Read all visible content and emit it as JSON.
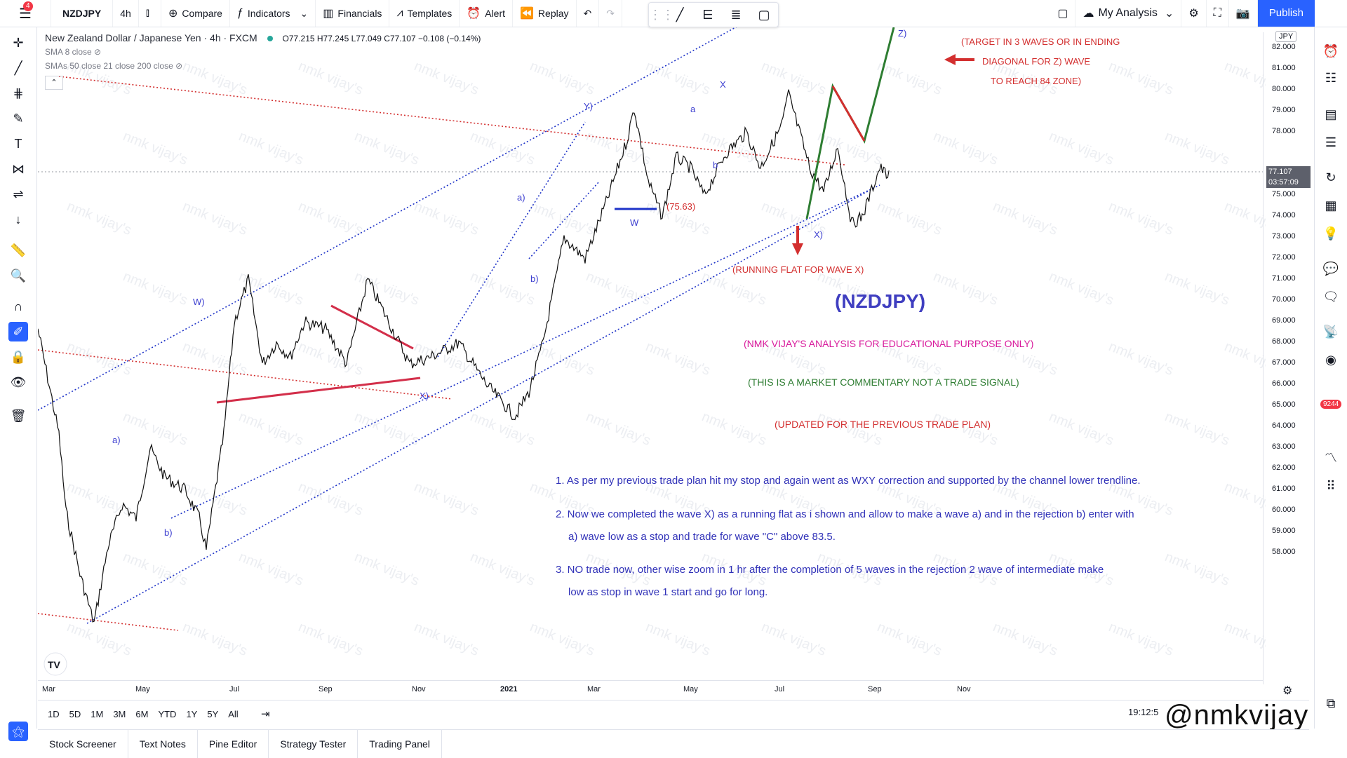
{
  "topbar": {
    "badge": "4",
    "symbol": "NZDJPY",
    "interval": "4h",
    "compare": "Compare",
    "indicators": "Indicators",
    "financials": "Financials",
    "templates": "Templates",
    "alert": "Alert",
    "replay": "Replay",
    "my_analysis": "My Analysis",
    "publish": "Publish"
  },
  "legend": {
    "pair": "New Zealand Dollar / Japanese Yen · 4h · FXCM",
    "ohlc": "O77.215 H77.245 L77.049 C77.107 −0.108 (−0.14%)",
    "sma8": "SMA 8 close",
    "smas": "SMAs 50 close 21 close 200 close"
  },
  "price_axis": {
    "currency": "JPY",
    "labels": [
      "82.000",
      "81.000",
      "80.000",
      "79.000",
      "78.000",
      "76.000",
      "75.000",
      "74.000",
      "73.000",
      "72.000",
      "71.000",
      "70.000",
      "69.000",
      "68.000",
      "67.000",
      "66.000",
      "65.000",
      "64.000",
      "63.000",
      "62.000",
      "61.000",
      "60.000",
      "59.000",
      "58.000"
    ],
    "last_price": "77.107",
    "countdown": "03:57:09"
  },
  "time_axis": [
    "Mar",
    "May",
    "Jul",
    "Sep",
    "Nov",
    "2021",
    "Mar",
    "May",
    "Jul",
    "Sep",
    "Nov"
  ],
  "ranges": [
    "1D",
    "5D",
    "1M",
    "3M",
    "6M",
    "YTD",
    "1Y",
    "5Y",
    "All"
  ],
  "clock": "19:12:5",
  "bottom_tabs": [
    "Stock Screener",
    "Text Notes",
    "Pine Editor",
    "Strategy Tester",
    "Trading Panel"
  ],
  "brand": "@nmkvijay",
  "annotations": {
    "target_line1": "(TARGET IN 3 WAVES OR IN ENDING",
    "target_line2": "DIAGONAL FOR Z) WAVE",
    "target_line3": "TO REACH 84 ZONE)",
    "running_flat": "(RUNNING FLAT FOR WAVE X)",
    "level": "(75.63)",
    "title": "(NZDJPY)",
    "disclaimer1": "(NMK VIJAY'S ANALYSIS FOR EDUCATIONAL PURPOSE ONLY)",
    "disclaimer2": "(THIS IS A MARKET COMMENTARY NOT A TRADE SIGNAL)",
    "disclaimer3": "(UPDATED FOR THE PREVIOUS TRADE PLAN)",
    "note1": "1.  As per my previous trade plan hit my stop and again went as WXY correction and supported by the channel lower trendline.",
    "note2a": "2.  Now we completed the wave X) as a running flat as i shown and allow to make a wave a) and in the rejection b) enter with",
    "note2b": "a) wave low as a stop and  trade for wave \"C\" above 83.5.",
    "note3a": "3.  NO trade now, other wise zoom in 1 hr after the completion of 5 waves in the rejection 2 wave of intermediate make",
    "note3b": "low as stop in wave 1 start and go for long."
  },
  "wave_labels": {
    "a1": "a)",
    "b1": "b)",
    "W1": "W)",
    "X1": "X)",
    "a2": "a)",
    "b2": "b)",
    "Y1": "Y)",
    "W2": "W",
    "a3": "a",
    "b3": "b",
    "X2": "X",
    "X3": "X)",
    "Z1": "Z)"
  },
  "watermark": "nmk vijay's",
  "colors": {
    "accent": "#2962ff",
    "wave_blue": "#3c3ed0",
    "target_red": "#d32f2f",
    "disclaimer_magenta": "#d81b9c",
    "disclaimer_green": "#2e7d32",
    "projection_green": "#2e7d32",
    "channel_blue": "#1e33c8"
  }
}
